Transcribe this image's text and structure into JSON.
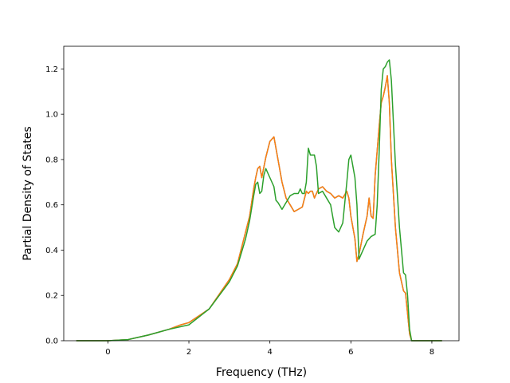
{
  "chart_data": {
    "type": "line",
    "title": "",
    "xlabel": "Frequency (THz)",
    "ylabel": "Partial Density of States",
    "xlim": [
      -1.09,
      8.67
    ],
    "ylim": [
      0.0,
      1.3
    ],
    "xticks": [
      0,
      2,
      4,
      6,
      8
    ],
    "yticks": [
      0.0,
      0.2,
      0.4,
      0.6,
      0.8,
      1.0,
      1.2
    ],
    "xtick_labels": [
      "0",
      "2",
      "4",
      "6",
      "8"
    ],
    "ytick_labels": [
      "0.0",
      "0.2",
      "0.4",
      "0.6",
      "0.8",
      "1.0",
      "1.2"
    ],
    "grid": false,
    "legend": "none",
    "series": [
      {
        "color": "#1f77b4",
        "x": [
          -0.78,
          0.0,
          0.5,
          1.0,
          1.5,
          1.8,
          2.0,
          2.5,
          3.0,
          3.2,
          3.4,
          3.5,
          3.6,
          3.65,
          3.7,
          3.75,
          3.8,
          3.9,
          4.0,
          4.05,
          4.1,
          4.2,
          4.3,
          4.4,
          4.5,
          4.6,
          4.7,
          4.8,
          4.9,
          4.95,
          5.0,
          5.05,
          5.1,
          5.15,
          5.2,
          5.3,
          5.4,
          5.5,
          5.6,
          5.7,
          5.8,
          5.9,
          5.95,
          6.0,
          6.05,
          6.1,
          6.15,
          6.2,
          6.3,
          6.4,
          6.45,
          6.5,
          6.55,
          6.6,
          6.7,
          6.75,
          6.8,
          6.85,
          6.9,
          6.95,
          7.0,
          7.1,
          7.2,
          7.3,
          7.35,
          7.4,
          7.45,
          7.5,
          7.6,
          7.7,
          8.25
        ],
        "y": [
          0.0,
          0.0,
          0.005,
          0.025,
          0.05,
          0.07,
          0.08,
          0.14,
          0.27,
          0.34,
          0.48,
          0.55,
          0.67,
          0.72,
          0.76,
          0.77,
          0.72,
          0.81,
          0.88,
          0.89,
          0.9,
          0.8,
          0.7,
          0.63,
          0.6,
          0.57,
          0.58,
          0.59,
          0.66,
          0.65,
          0.66,
          0.66,
          0.63,
          0.65,
          0.67,
          0.68,
          0.66,
          0.65,
          0.63,
          0.64,
          0.63,
          0.66,
          0.63,
          0.55,
          0.5,
          0.45,
          0.35,
          0.38,
          0.47,
          0.55,
          0.63,
          0.55,
          0.54,
          0.73,
          0.95,
          1.05,
          1.08,
          1.12,
          1.17,
          1.05,
          0.8,
          0.5,
          0.3,
          0.22,
          0.21,
          0.12,
          0.03,
          0.0,
          0.0,
          0.0,
          0.0
        ]
      },
      {
        "color": "#ff7f0e",
        "x": [
          -0.78,
          0.0,
          0.5,
          1.0,
          1.5,
          1.8,
          2.0,
          2.5,
          3.0,
          3.2,
          3.4,
          3.5,
          3.6,
          3.65,
          3.7,
          3.75,
          3.8,
          3.9,
          4.0,
          4.05,
          4.1,
          4.2,
          4.3,
          4.4,
          4.5,
          4.6,
          4.7,
          4.8,
          4.9,
          4.95,
          5.0,
          5.05,
          5.1,
          5.15,
          5.2,
          5.3,
          5.4,
          5.5,
          5.6,
          5.7,
          5.8,
          5.9,
          5.95,
          6.0,
          6.05,
          6.1,
          6.15,
          6.2,
          6.3,
          6.4,
          6.45,
          6.5,
          6.55,
          6.6,
          6.7,
          6.75,
          6.8,
          6.85,
          6.9,
          6.95,
          7.0,
          7.1,
          7.2,
          7.3,
          7.35,
          7.4,
          7.45,
          7.5,
          7.6,
          7.7,
          8.25
        ],
        "y": [
          0.0,
          0.0,
          0.005,
          0.025,
          0.05,
          0.07,
          0.08,
          0.14,
          0.27,
          0.34,
          0.48,
          0.55,
          0.67,
          0.72,
          0.76,
          0.77,
          0.72,
          0.81,
          0.88,
          0.89,
          0.9,
          0.8,
          0.7,
          0.63,
          0.6,
          0.57,
          0.58,
          0.59,
          0.66,
          0.65,
          0.66,
          0.66,
          0.63,
          0.65,
          0.67,
          0.68,
          0.66,
          0.65,
          0.63,
          0.64,
          0.63,
          0.66,
          0.63,
          0.55,
          0.5,
          0.45,
          0.35,
          0.38,
          0.47,
          0.55,
          0.63,
          0.55,
          0.54,
          0.73,
          0.95,
          1.05,
          1.08,
          1.12,
          1.17,
          1.05,
          0.8,
          0.5,
          0.3,
          0.22,
          0.21,
          0.12,
          0.03,
          0.0,
          0.0,
          0.0,
          0.0
        ]
      },
      {
        "color": "#2ca02c",
        "x": [
          -0.78,
          0.0,
          0.5,
          1.0,
          1.5,
          2.0,
          2.5,
          3.0,
          3.2,
          3.4,
          3.5,
          3.6,
          3.65,
          3.7,
          3.75,
          3.8,
          3.85,
          3.9,
          4.0,
          4.1,
          4.15,
          4.2,
          4.3,
          4.4,
          4.5,
          4.6,
          4.7,
          4.75,
          4.8,
          4.85,
          4.9,
          4.95,
          5.0,
          5.1,
          5.15,
          5.2,
          5.3,
          5.4,
          5.5,
          5.6,
          5.7,
          5.8,
          5.9,
          5.95,
          6.0,
          6.1,
          6.15,
          6.2,
          6.3,
          6.4,
          6.5,
          6.6,
          6.65,
          6.7,
          6.75,
          6.8,
          6.85,
          6.9,
          6.95,
          7.0,
          7.1,
          7.2,
          7.3,
          7.35,
          7.4,
          7.45,
          7.5,
          7.6,
          7.7,
          8.25
        ],
        "y": [
          0.0,
          0.0,
          0.005,
          0.025,
          0.05,
          0.07,
          0.14,
          0.26,
          0.33,
          0.45,
          0.53,
          0.64,
          0.69,
          0.7,
          0.65,
          0.66,
          0.73,
          0.76,
          0.72,
          0.68,
          0.62,
          0.61,
          0.58,
          0.61,
          0.64,
          0.65,
          0.65,
          0.67,
          0.65,
          0.65,
          0.7,
          0.85,
          0.82,
          0.82,
          0.77,
          0.65,
          0.66,
          0.63,
          0.6,
          0.5,
          0.48,
          0.52,
          0.7,
          0.8,
          0.82,
          0.72,
          0.6,
          0.36,
          0.4,
          0.44,
          0.46,
          0.47,
          0.6,
          0.84,
          1.11,
          1.2,
          1.21,
          1.23,
          1.24,
          1.15,
          0.78,
          0.5,
          0.3,
          0.29,
          0.2,
          0.05,
          0.0,
          0.0,
          0.0,
          0.0
        ]
      }
    ]
  }
}
